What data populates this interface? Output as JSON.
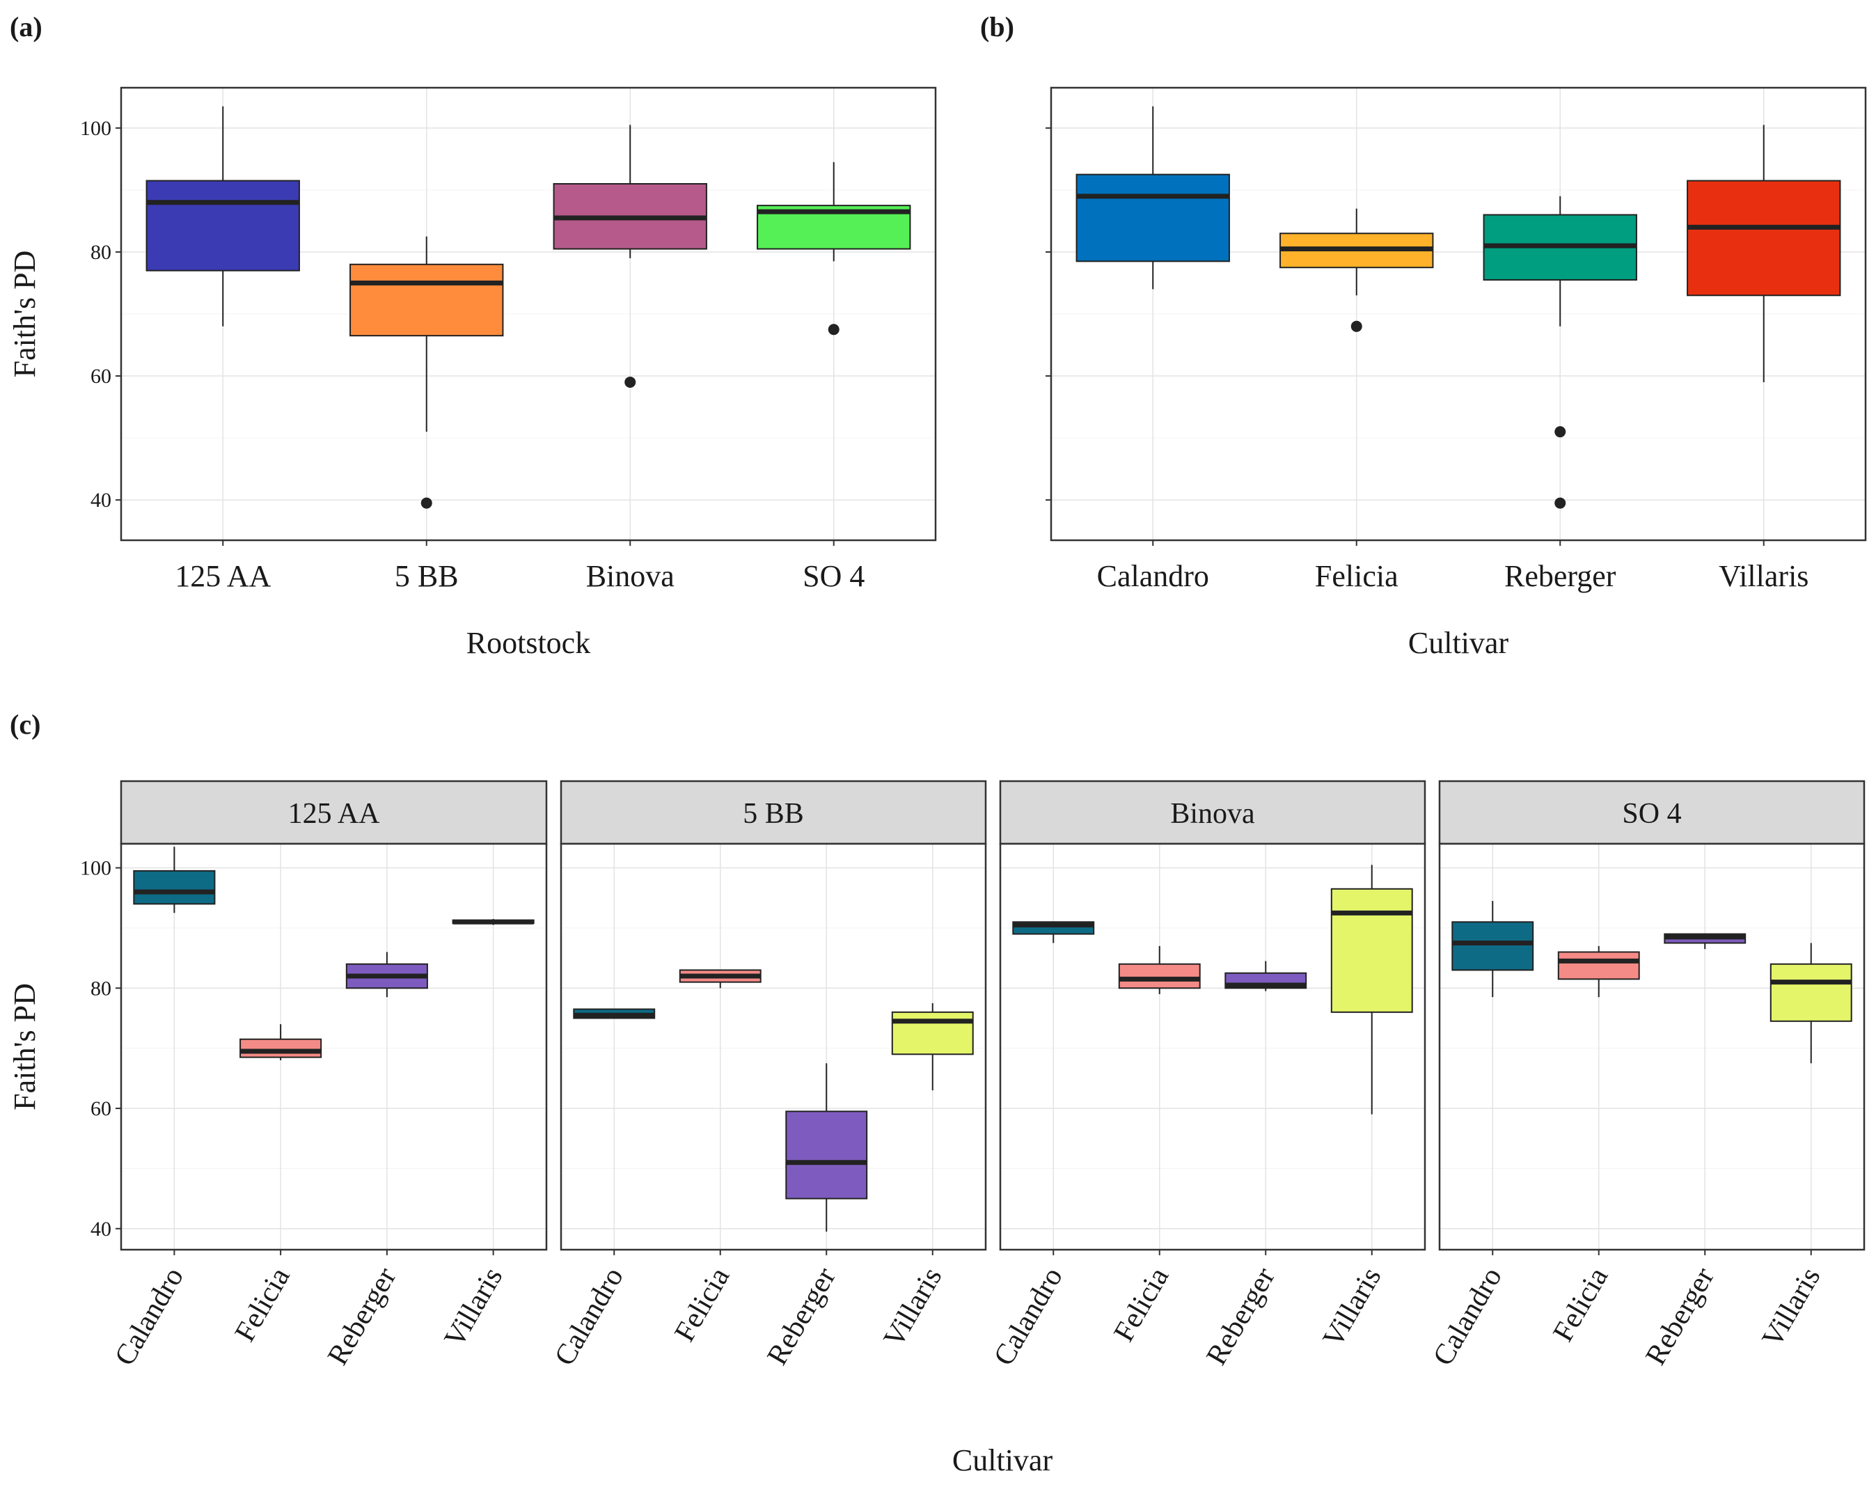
{
  "chart_data": [
    {
      "panel": "(a)",
      "type": "boxplot",
      "xlabel": "Rootstock",
      "ylabel": "Faith's PD",
      "ylim": [
        33.5,
        106.5
      ],
      "yticks": [
        40,
        60,
        80,
        100
      ],
      "grid": true,
      "categories": [
        "125 AA",
        "5 BB",
        "Binova",
        "SO 4"
      ],
      "boxes": [
        {
          "category": "125 AA",
          "min": 68,
          "q1": 77,
          "median": 88,
          "q3": 91.5,
          "max": 103.5,
          "outliers": [],
          "color": "#3b3bb3"
        },
        {
          "category": "5 BB",
          "min": 51,
          "q1": 66.5,
          "median": 75,
          "q3": 78,
          "max": 82.5,
          "outliers": [
            39.5
          ],
          "color": "#ff8c3c"
        },
        {
          "category": "Binova",
          "min": 79,
          "q1": 80.5,
          "median": 85.5,
          "q3": 91,
          "max": 100.5,
          "outliers": [
            59
          ],
          "color": "#b55a8a"
        },
        {
          "category": "SO 4",
          "min": 78.5,
          "q1": 80.5,
          "median": 86.5,
          "q3": 87.5,
          "max": 94.5,
          "outliers": [
            67.5
          ],
          "color": "#55f055"
        }
      ]
    },
    {
      "panel": "(b)",
      "type": "boxplot",
      "xlabel": "Cultivar",
      "ylabel": "",
      "ylim": [
        33.5,
        106.5
      ],
      "yticks": [
        40,
        60,
        80,
        100
      ],
      "grid": true,
      "categories": [
        "Calandro",
        "Felicia",
        "Reberger",
        "Villaris"
      ],
      "boxes": [
        {
          "category": "Calandro",
          "min": 74,
          "q1": 78.5,
          "median": 89,
          "q3": 92.5,
          "max": 103.5,
          "outliers": [],
          "color": "#0072bd"
        },
        {
          "category": "Felicia",
          "min": 73,
          "q1": 77.5,
          "median": 80.5,
          "q3": 83,
          "max": 87,
          "outliers": [
            68
          ],
          "color": "#ffb22a"
        },
        {
          "category": "Reberger",
          "min": 68,
          "q1": 75.5,
          "median": 81,
          "q3": 86,
          "max": 89,
          "outliers": [
            51,
            39.5
          ],
          "color": "#009e80"
        },
        {
          "category": "Villaris",
          "min": 59,
          "q1": 73,
          "median": 84,
          "q3": 91.5,
          "max": 100.5,
          "outliers": [],
          "color": "#e83010"
        }
      ]
    },
    {
      "panel": "(c)",
      "type": "boxplot-facet",
      "xlabel": "Cultivar",
      "ylabel": "Faith's PD",
      "ylim": [
        36.5,
        104
      ],
      "yticks": [
        40,
        60,
        80,
        100
      ],
      "grid": true,
      "categories": [
        "Calandro",
        "Felicia",
        "Reberger",
        "Villaris"
      ],
      "colors": {
        "Calandro": "#0e6b86",
        "Felicia": "#f58b87",
        "Reberger": "#7e5cbf",
        "Villaris": "#e4f56a"
      },
      "facets": [
        {
          "name": "125 AA",
          "boxes": [
            {
              "category": "Calandro",
              "min": 92.5,
              "q1": 94,
              "median": 96,
              "q3": 99.5,
              "max": 103.5
            },
            {
              "category": "Felicia",
              "min": 68,
              "q1": 68.5,
              "median": 69.5,
              "q3": 71.5,
              "max": 74
            },
            {
              "category": "Reberger",
              "min": 78.5,
              "q1": 80,
              "median": 82,
              "q3": 84,
              "max": 86
            },
            {
              "category": "Villaris",
              "min": 90.5,
              "q1": 90.8,
              "median": 91,
              "q3": 91.3,
              "max": 91.5
            }
          ]
        },
        {
          "name": "5 BB",
          "boxes": [
            {
              "category": "Calandro",
              "min": 75,
              "q1": 75,
              "median": 75.5,
              "q3": 76.5,
              "max": 76.5
            },
            {
              "category": "Felicia",
              "min": 80,
              "q1": 81,
              "median": 82,
              "q3": 83,
              "max": 83
            },
            {
              "category": "Reberger",
              "min": 39.5,
              "q1": 45,
              "median": 51,
              "q3": 59.5,
              "max": 67.5
            },
            {
              "category": "Villaris",
              "min": 63,
              "q1": 69,
              "median": 74.5,
              "q3": 76,
              "max": 77.5
            }
          ]
        },
        {
          "name": "Binova",
          "boxes": [
            {
              "category": "Calandro",
              "min": 87.5,
              "q1": 89,
              "median": 90.5,
              "q3": 91,
              "max": 91
            },
            {
              "category": "Felicia",
              "min": 79,
              "q1": 80,
              "median": 81.5,
              "q3": 84,
              "max": 87
            },
            {
              "category": "Reberger",
              "min": 79.5,
              "q1": 80,
              "median": 80.5,
              "q3": 82.5,
              "max": 84.5
            },
            {
              "category": "Villaris",
              "min": 59,
              "q1": 76,
              "median": 92.5,
              "q3": 96.5,
              "max": 100.5
            }
          ]
        },
        {
          "name": "SO 4",
          "boxes": [
            {
              "category": "Calandro",
              "min": 78.5,
              "q1": 83,
              "median": 87.5,
              "q3": 91,
              "max": 94.5
            },
            {
              "category": "Felicia",
              "min": 78.5,
              "q1": 81.5,
              "median": 84.5,
              "q3": 86,
              "max": 87
            },
            {
              "category": "Reberger",
              "min": 86.5,
              "q1": 87.5,
              "median": 88.5,
              "q3": 89,
              "max": 89
            },
            {
              "category": "Villaris",
              "min": 67.5,
              "q1": 74.5,
              "median": 81,
              "q3": 84,
              "max": 87.5
            }
          ]
        }
      ]
    }
  ]
}
